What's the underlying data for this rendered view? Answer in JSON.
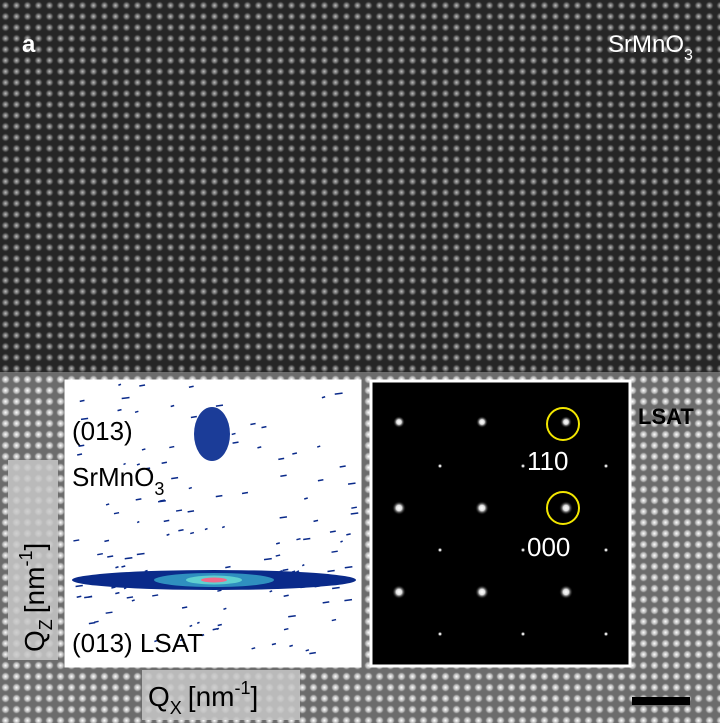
{
  "panel_label": "a",
  "film": {
    "base": "SrMnO",
    "sub": "3"
  },
  "substrate": "LSAT",
  "rsm": {
    "film_label": {
      "line1": "(013)",
      "base": "SrMnO",
      "sub": "3"
    },
    "substrate_label": "(013) LSAT",
    "x_axis": {
      "base": "Q",
      "sub": "X",
      "unit": "[nm",
      "sup": "-1",
      "close": "]"
    },
    "y_axis": {
      "base": "Q",
      "sub": "Z",
      "unit": "[nm",
      "sup": "-1",
      "close": "]"
    }
  },
  "diffraction": {
    "spot_labels": [
      "110",
      "000"
    ]
  }
}
